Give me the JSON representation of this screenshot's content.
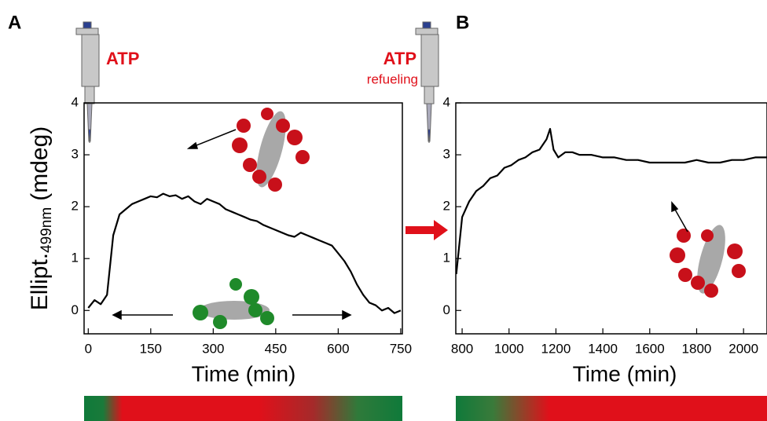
{
  "chart_data": [
    {
      "type": "line",
      "label": "A",
      "annotations": [
        "ATP"
      ],
      "ylabel": [
        "Ellipt.",
        "499nm",
        "(mdeg)"
      ],
      "xlabel": "Time (min)",
      "xlim": [
        -10,
        754
      ],
      "ylim": [
        -0.45,
        4
      ],
      "xticks": [
        0,
        150,
        300,
        450,
        600,
        750
      ],
      "yticks": [
        0,
        1,
        2,
        3,
        4
      ],
      "color": "#000000",
      "x": [
        0,
        15,
        30,
        45,
        60,
        75,
        90,
        105,
        120,
        135,
        150,
        165,
        180,
        195,
        210,
        225,
        240,
        255,
        270,
        285,
        300,
        315,
        330,
        345,
        360,
        375,
        390,
        405,
        420,
        435,
        450,
        465,
        480,
        495,
        510,
        525,
        540,
        555,
        570,
        585,
        600,
        615,
        630,
        645,
        660,
        675,
        690,
        705,
        720,
        735,
        750
      ],
      "values": [
        0.05,
        0.2,
        0.12,
        0.3,
        1.45,
        1.85,
        1.95,
        2.05,
        2.1,
        2.15,
        2.2,
        2.18,
        2.25,
        2.2,
        2.22,
        2.15,
        2.2,
        2.1,
        2.05,
        2.15,
        2.1,
        2.05,
        1.95,
        1.9,
        1.85,
        1.8,
        1.75,
        1.72,
        1.65,
        1.6,
        1.55,
        1.5,
        1.45,
        1.42,
        1.5,
        1.45,
        1.4,
        1.35,
        1.3,
        1.25,
        1.1,
        0.95,
        0.75,
        0.5,
        0.3,
        0.15,
        0.1,
        0.0,
        0.05,
        -0.05,
        0.0
      ]
    },
    {
      "type": "line",
      "label": "B",
      "annotations": [
        "ATP",
        "refueling"
      ],
      "xlabel": "Time (min)",
      "xlim": [
        773,
        2100
      ],
      "ylim": [
        -0.45,
        4
      ],
      "xticks": [
        800,
        1000,
        1200,
        1400,
        1600,
        1800,
        2000
      ],
      "yticks": [
        0,
        1,
        2,
        3,
        4
      ],
      "color": "#000000",
      "x": [
        775,
        800,
        830,
        860,
        890,
        920,
        950,
        980,
        1010,
        1040,
        1070,
        1100,
        1130,
        1160,
        1175,
        1190,
        1210,
        1240,
        1270,
        1300,
        1350,
        1400,
        1450,
        1500,
        1550,
        1600,
        1650,
        1700,
        1750,
        1800,
        1850,
        1900,
        1950,
        2000,
        2050,
        2100
      ],
      "values": [
        0.7,
        1.8,
        2.1,
        2.3,
        2.4,
        2.55,
        2.6,
        2.75,
        2.8,
        2.9,
        2.95,
        3.05,
        3.1,
        3.3,
        3.5,
        3.1,
        2.95,
        3.05,
        3.05,
        3.0,
        3.0,
        2.95,
        2.95,
        2.9,
        2.9,
        2.85,
        2.85,
        2.85,
        2.85,
        2.9,
        2.85,
        2.85,
        2.9,
        2.9,
        2.95,
        2.95
      ]
    }
  ]
}
